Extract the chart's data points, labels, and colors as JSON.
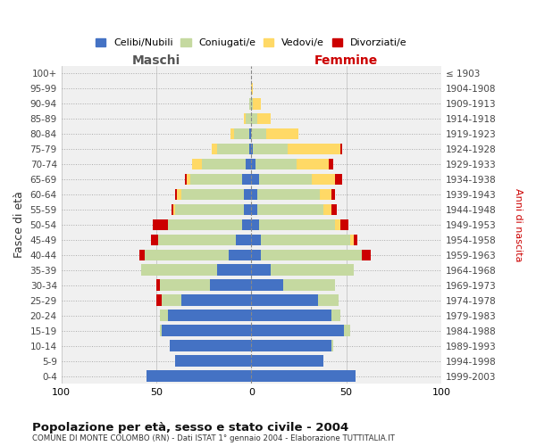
{
  "age_groups": [
    "0-4",
    "5-9",
    "10-14",
    "15-19",
    "20-24",
    "25-29",
    "30-34",
    "35-39",
    "40-44",
    "45-49",
    "50-54",
    "55-59",
    "60-64",
    "65-69",
    "70-74",
    "75-79",
    "80-84",
    "85-89",
    "90-94",
    "95-99",
    "100+"
  ],
  "birth_years": [
    "1999-2003",
    "1994-1998",
    "1989-1993",
    "1984-1988",
    "1979-1983",
    "1974-1978",
    "1969-1973",
    "1964-1968",
    "1959-1963",
    "1954-1958",
    "1949-1953",
    "1944-1948",
    "1939-1943",
    "1934-1938",
    "1929-1933",
    "1924-1928",
    "1919-1923",
    "1914-1918",
    "1909-1913",
    "1904-1908",
    "≤ 1903"
  ],
  "maschi": {
    "celibi": [
      55,
      40,
      43,
      47,
      44,
      37,
      22,
      18,
      12,
      8,
      5,
      4,
      4,
      5,
      3,
      1,
      1,
      0,
      0,
      0,
      0
    ],
    "coniugati": [
      0,
      0,
      0,
      1,
      4,
      10,
      26,
      40,
      44,
      41,
      39,
      36,
      33,
      27,
      23,
      17,
      8,
      3,
      1,
      0,
      0
    ],
    "vedovi": [
      0,
      0,
      0,
      0,
      0,
      0,
      0,
      0,
      0,
      0,
      0,
      1,
      2,
      2,
      5,
      3,
      2,
      1,
      0,
      0,
      0
    ],
    "divorziati": [
      0,
      0,
      0,
      0,
      0,
      3,
      2,
      0,
      3,
      4,
      8,
      1,
      1,
      1,
      0,
      0,
      0,
      0,
      0,
      0,
      0
    ]
  },
  "femmine": {
    "nubili": [
      55,
      38,
      42,
      49,
      42,
      35,
      17,
      10,
      5,
      5,
      4,
      3,
      3,
      4,
      2,
      1,
      0,
      0,
      0,
      0,
      0
    ],
    "coniugate": [
      0,
      0,
      1,
      3,
      5,
      11,
      27,
      44,
      53,
      47,
      40,
      35,
      33,
      28,
      22,
      18,
      8,
      3,
      1,
      0,
      0
    ],
    "vedove": [
      0,
      0,
      0,
      0,
      0,
      0,
      0,
      0,
      0,
      2,
      3,
      4,
      6,
      12,
      17,
      28,
      17,
      7,
      4,
      1,
      0
    ],
    "divorziate": [
      0,
      0,
      0,
      0,
      0,
      0,
      0,
      0,
      5,
      2,
      4,
      3,
      2,
      4,
      2,
      1,
      0,
      0,
      0,
      0,
      0
    ]
  },
  "colors": {
    "celibi": "#4472c4",
    "coniugati": "#c5d9a0",
    "vedovi": "#ffd966",
    "divorziati": "#cc0000"
  },
  "title1": "Popolazione per età, sesso e stato civile - 2004",
  "title2": "COMUNE DI MONTE COLOMBO (RN) - Dati ISTAT 1° gennaio 2004 - Elaborazione TUTTITALIA.IT",
  "xlabel_left": "Maschi",
  "xlabel_right": "Femmine",
  "ylabel_left": "Fasce di età",
  "ylabel_right": "Anni di nascita",
  "xlim": 100,
  "bg_color": "#ffffff",
  "plot_bg": "#f0f0f0",
  "grid_color": "#cccccc",
  "legend_labels": [
    "Celibi/Nubili",
    "Coniugati/e",
    "Vedovi/e",
    "Divorziati/e"
  ]
}
